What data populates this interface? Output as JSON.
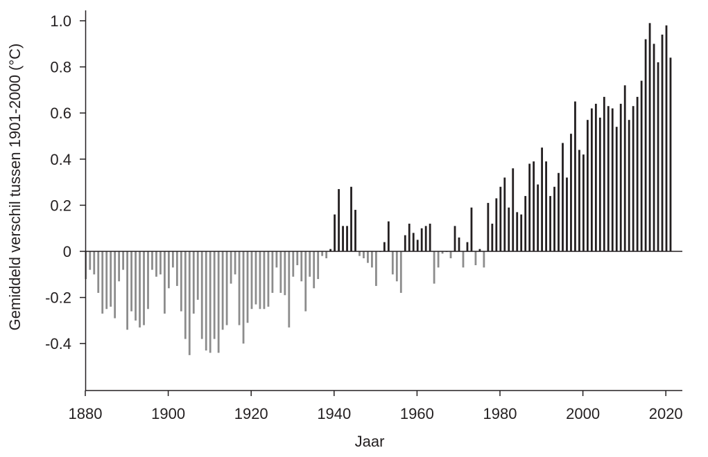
{
  "chart_data": {
    "type": "bar",
    "title": "",
    "xlabel": "Jaar",
    "ylabel": "Gemiddeld verschil tussen 1901-2000 (°C)",
    "xlim": [
      1880,
      2023
    ],
    "ylim": [
      -0.6,
      1.05
    ],
    "x_ticks": [
      1880,
      1900,
      1920,
      1940,
      1960,
      1980,
      2000,
      2020
    ],
    "y_ticks": [
      -0.4,
      -0.2,
      0,
      0.2,
      0.4,
      0.6,
      0.8,
      1.0
    ],
    "y_tick_labels": [
      "-0.4",
      "-0.2",
      "0",
      "0.2",
      "0.4",
      "0.6",
      "0.8",
      "1.0"
    ],
    "colors": {
      "positive": "#231f20",
      "negative": "#8c8c8c",
      "axis": "#231f20"
    },
    "grid": false,
    "legend": "none",
    "x": [
      1880,
      1881,
      1882,
      1883,
      1884,
      1885,
      1886,
      1887,
      1888,
      1889,
      1890,
      1891,
      1892,
      1893,
      1894,
      1895,
      1896,
      1897,
      1898,
      1899,
      1900,
      1901,
      1902,
      1903,
      1904,
      1905,
      1906,
      1907,
      1908,
      1909,
      1910,
      1911,
      1912,
      1913,
      1914,
      1915,
      1916,
      1917,
      1918,
      1919,
      1920,
      1921,
      1922,
      1923,
      1924,
      1925,
      1926,
      1927,
      1928,
      1929,
      1930,
      1931,
      1932,
      1933,
      1934,
      1935,
      1936,
      1937,
      1938,
      1939,
      1940,
      1941,
      1942,
      1943,
      1944,
      1945,
      1946,
      1947,
      1948,
      1949,
      1950,
      1951,
      1952,
      1953,
      1954,
      1955,
      1956,
      1957,
      1958,
      1959,
      1960,
      1961,
      1962,
      1963,
      1964,
      1965,
      1966,
      1967,
      1968,
      1969,
      1970,
      1971,
      1972,
      1973,
      1974,
      1975,
      1976,
      1977,
      1978,
      1979,
      1980,
      1981,
      1982,
      1983,
      1984,
      1985,
      1986,
      1987,
      1988,
      1989,
      1990,
      1991,
      1992,
      1993,
      1994,
      1995,
      1996,
      1997,
      1998,
      1999,
      2000,
      2001,
      2002,
      2003,
      2004,
      2005,
      2006,
      2007,
      2008,
      2009,
      2010,
      2011,
      2012,
      2013,
      2014,
      2015,
      2016,
      2017,
      2018,
      2019,
      2020,
      2021
    ],
    "values": [
      -0.12,
      -0.08,
      -0.1,
      -0.18,
      -0.27,
      -0.25,
      -0.24,
      -0.29,
      -0.13,
      -0.08,
      -0.34,
      -0.26,
      -0.3,
      -0.33,
      -0.32,
      -0.25,
      -0.08,
      -0.11,
      -0.1,
      -0.27,
      -0.16,
      -0.07,
      -0.15,
      -0.26,
      -0.38,
      -0.45,
      -0.27,
      -0.21,
      -0.38,
      -0.43,
      -0.44,
      -0.38,
      -0.44,
      -0.34,
      -0.32,
      -0.14,
      -0.1,
      -0.32,
      -0.4,
      -0.31,
      -0.25,
      -0.23,
      -0.25,
      -0.25,
      -0.24,
      -0.18,
      -0.07,
      -0.18,
      -0.19,
      -0.33,
      -0.11,
      -0.06,
      -0.13,
      -0.26,
      -0.11,
      -0.16,
      -0.12,
      -0.02,
      -0.03,
      0.01,
      0.16,
      0.27,
      0.11,
      0.11,
      0.28,
      0.18,
      -0.02,
      -0.03,
      -0.05,
      -0.07,
      -0.15,
      0.0,
      0.04,
      0.13,
      -0.1,
      -0.13,
      -0.18,
      0.07,
      0.12,
      0.08,
      0.05,
      0.1,
      0.11,
      0.12,
      -0.14,
      -0.07,
      -0.01,
      0.0,
      -0.03,
      0.11,
      0.06,
      -0.07,
      0.04,
      0.19,
      -0.06,
      0.01,
      -0.07,
      0.21,
      0.12,
      0.23,
      0.28,
      0.32,
      0.19,
      0.36,
      0.17,
      0.16,
      0.24,
      0.38,
      0.39,
      0.29,
      0.45,
      0.39,
      0.24,
      0.28,
      0.34,
      0.47,
      0.32,
      0.51,
      0.65,
      0.44,
      0.42,
      0.57,
      0.62,
      0.64,
      0.58,
      0.67,
      0.63,
      0.62,
      0.54,
      0.64,
      0.72,
      0.57,
      0.63,
      0.67,
      0.74,
      0.92,
      0.99,
      0.9,
      0.82,
      0.94,
      0.98,
      0.84
    ]
  }
}
